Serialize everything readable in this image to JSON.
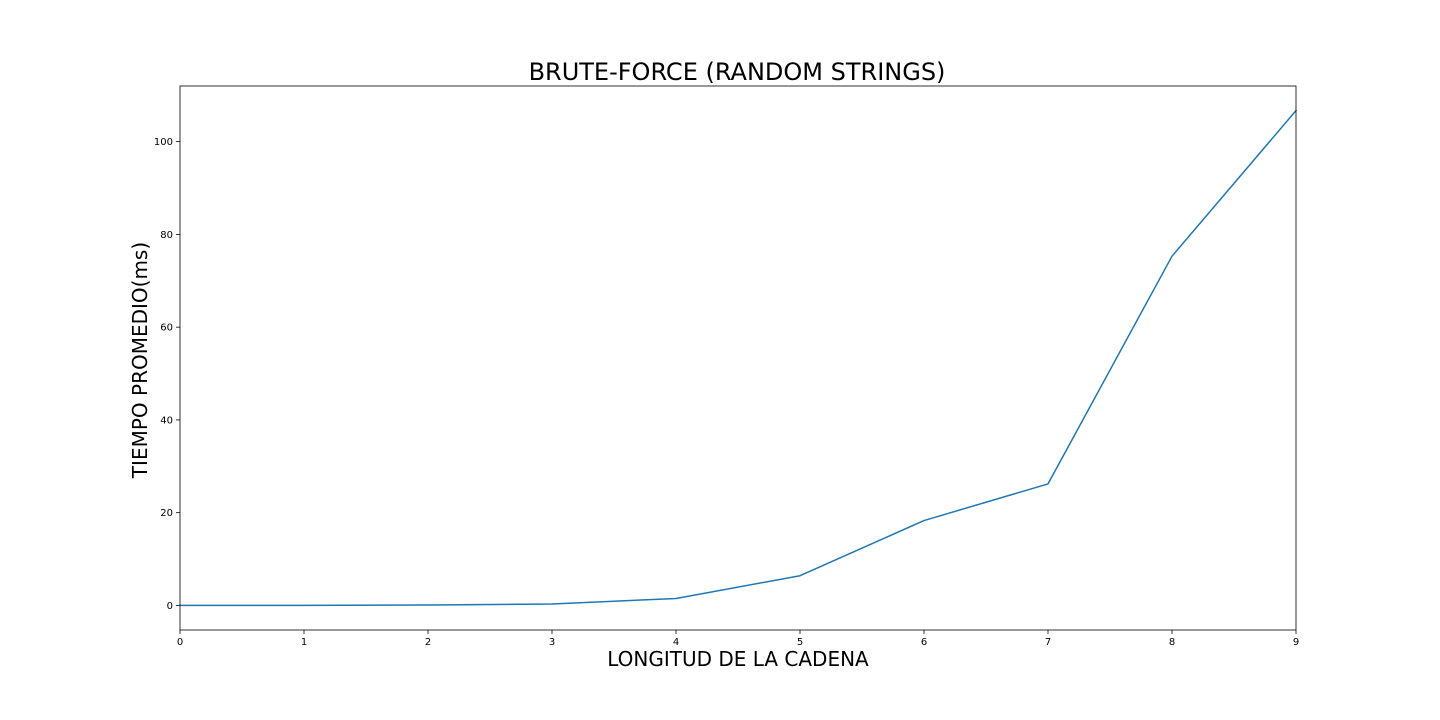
{
  "chart_data": {
    "type": "line",
    "title": "BRUTE-FORCE (RANDOM STRINGS)",
    "xlabel": "LONGITUD DE LA CADENA",
    "ylabel": "TIEMPO PROMEDIO(ms)",
    "x": [
      0,
      1,
      2,
      3,
      4,
      5,
      6,
      7,
      8,
      9
    ],
    "series": [
      {
        "values": [
          0.0,
          0.0,
          0.1,
          0.3,
          1.5,
          6.4,
          18.3,
          26.2,
          75.3,
          106.7
        ]
      }
    ],
    "xlim": [
      0,
      9
    ],
    "ylim": [
      -5.3,
      112.0
    ],
    "xticks": [
      "0",
      "1",
      "2",
      "3",
      "4",
      "5",
      "6",
      "7",
      "8",
      "9"
    ],
    "yticks": [
      "0",
      "20",
      "40",
      "60",
      "80",
      "100"
    ],
    "grid": false,
    "line_color": "#1f77b4"
  }
}
